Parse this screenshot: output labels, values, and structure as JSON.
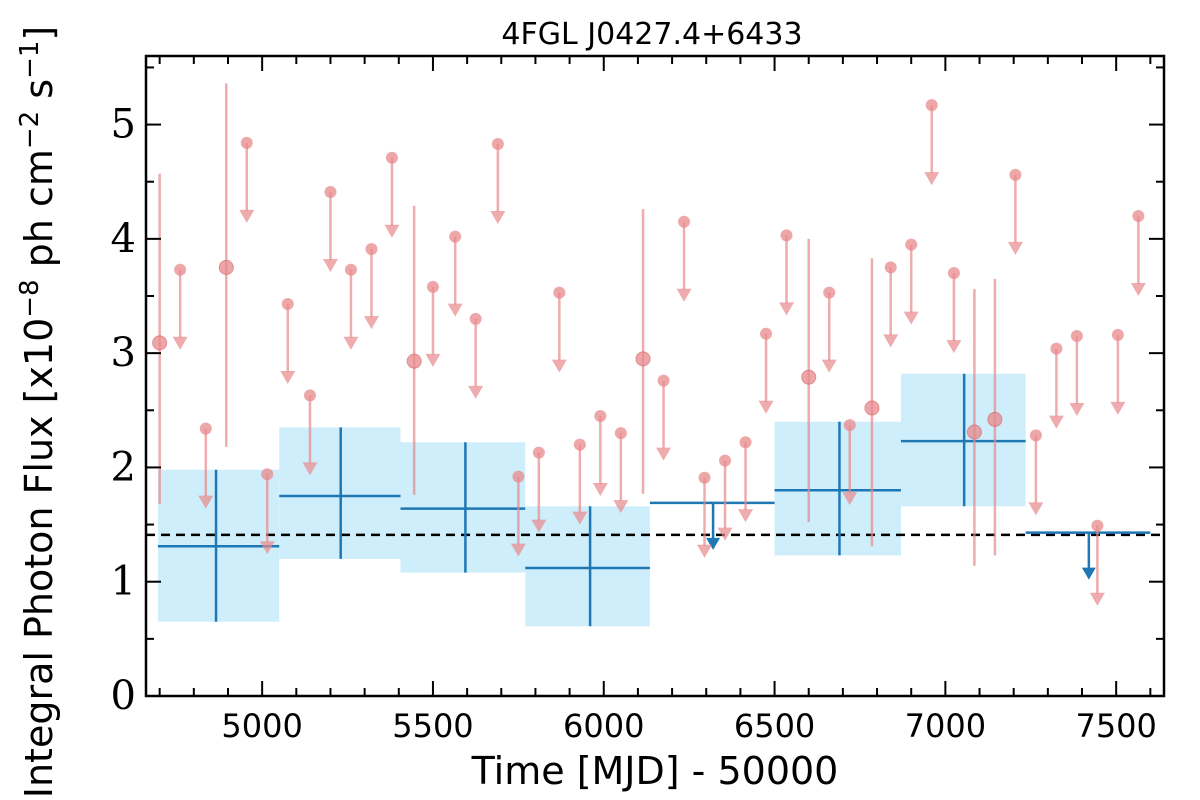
{
  "chart_data": {
    "type": "scatter",
    "title": "4FGL J0427.4+6433",
    "xlabel": "Time [MJD] - 50000",
    "ylabel_main": "Integral Photon Flux [x10",
    "ylabel_exp1": "−8",
    "ylabel_mid": " ph cm",
    "ylabel_exp2": "−2",
    "ylabel_s": " s",
    "ylabel_exp3": "−1",
    "ylabel_end": "]",
    "xlim": [
      4660,
      7640
    ],
    "ylim": [
      0,
      5.6
    ],
    "xticks": [
      "5000",
      "5500",
      "6000",
      "6500",
      "7000",
      "7500"
    ],
    "yticks": [
      "0",
      "1",
      "2",
      "3",
      "4",
      "5"
    ],
    "colors": {
      "band": "#cfeefb",
      "bin": "#1f77b4",
      "short": "#e8898c",
      "reference": "#000000"
    },
    "reference_flux": 1.41,
    "long_bins": [
      {
        "x": 4865,
        "x_lo": 4695,
        "x_hi": 5050,
        "y": 1.31,
        "y_lo": 0.65,
        "y_hi": 1.98
      },
      {
        "x": 5230,
        "x_lo": 5050,
        "x_hi": 5405,
        "y": 1.75,
        "y_lo": 1.2,
        "y_hi": 2.35
      },
      {
        "x": 5595,
        "x_lo": 5405,
        "x_hi": 5770,
        "y": 1.64,
        "y_lo": 1.08,
        "y_hi": 2.22
      },
      {
        "x": 5960,
        "x_lo": 5770,
        "x_hi": 6135,
        "y": 1.12,
        "y_lo": 0.61,
        "y_hi": 1.66
      },
      {
        "x": 6690,
        "x_lo": 6500,
        "x_hi": 6870,
        "y": 1.8,
        "y_lo": 1.23,
        "y_hi": 2.4
      },
      {
        "x": 7055,
        "x_lo": 6870,
        "x_hi": 7235,
        "y": 2.23,
        "y_lo": 1.66,
        "y_hi": 2.82
      }
    ],
    "long_upper_limits": [
      {
        "x": 6320,
        "x_lo": 6135,
        "x_hi": 6500,
        "y": 1.69
      },
      {
        "x": 7420,
        "x_lo": 7235,
        "x_hi": 7600,
        "y": 1.43
      }
    ],
    "short_detections": [
      {
        "x": 4700,
        "y": 3.09,
        "y_lo": 1.68,
        "y_hi": 4.57
      },
      {
        "x": 4895,
        "y": 3.75,
        "y_lo": 2.18,
        "y_hi": 5.36
      },
      {
        "x": 5445,
        "y": 2.93,
        "y_lo": 1.76,
        "y_hi": 4.29
      },
      {
        "x": 6115,
        "y": 2.95,
        "y_lo": 1.77,
        "y_hi": 4.26
      },
      {
        "x": 6600,
        "y": 2.79,
        "y_lo": 1.52,
        "y_hi": 4.0
      },
      {
        "x": 6785,
        "y": 2.52,
        "y_lo": 1.31,
        "y_hi": 3.83
      },
      {
        "x": 7085,
        "y": 2.31,
        "y_lo": 1.14,
        "y_hi": 3.56
      },
      {
        "x": 7145,
        "y": 2.42,
        "y_lo": 1.23,
        "y_hi": 3.65
      }
    ],
    "short_upper_limits": [
      {
        "x": 4760,
        "y": 3.73
      },
      {
        "x": 4835,
        "y": 2.34
      },
      {
        "x": 4955,
        "y": 4.84
      },
      {
        "x": 5015,
        "y": 1.94
      },
      {
        "x": 5075,
        "y": 3.43
      },
      {
        "x": 5140,
        "y": 2.63
      },
      {
        "x": 5200,
        "y": 4.41
      },
      {
        "x": 5260,
        "y": 3.73
      },
      {
        "x": 5320,
        "y": 3.91
      },
      {
        "x": 5380,
        "y": 4.71
      },
      {
        "x": 5500,
        "y": 3.58
      },
      {
        "x": 5565,
        "y": 4.02
      },
      {
        "x": 5625,
        "y": 3.3
      },
      {
        "x": 5690,
        "y": 4.83
      },
      {
        "x": 5750,
        "y": 1.92
      },
      {
        "x": 5810,
        "y": 2.13
      },
      {
        "x": 5870,
        "y": 3.53
      },
      {
        "x": 5930,
        "y": 2.2
      },
      {
        "x": 5990,
        "y": 2.45
      },
      {
        "x": 6050,
        "y": 2.3
      },
      {
        "x": 6175,
        "y": 2.76
      },
      {
        "x": 6235,
        "y": 4.15
      },
      {
        "x": 6295,
        "y": 1.91
      },
      {
        "x": 6355,
        "y": 2.06
      },
      {
        "x": 6415,
        "y": 2.22
      },
      {
        "x": 6475,
        "y": 3.17
      },
      {
        "x": 6535,
        "y": 4.03
      },
      {
        "x": 6660,
        "y": 3.53
      },
      {
        "x": 6720,
        "y": 2.37
      },
      {
        "x": 6840,
        "y": 3.75
      },
      {
        "x": 6900,
        "y": 3.95
      },
      {
        "x": 6960,
        "y": 5.17
      },
      {
        "x": 7025,
        "y": 3.7
      },
      {
        "x": 7205,
        "y": 4.56
      },
      {
        "x": 7265,
        "y": 2.28
      },
      {
        "x": 7325,
        "y": 3.04
      },
      {
        "x": 7385,
        "y": 3.15
      },
      {
        "x": 7445,
        "y": 1.49
      },
      {
        "x": 7505,
        "y": 3.16
      },
      {
        "x": 7565,
        "y": 4.2
      }
    ]
  }
}
